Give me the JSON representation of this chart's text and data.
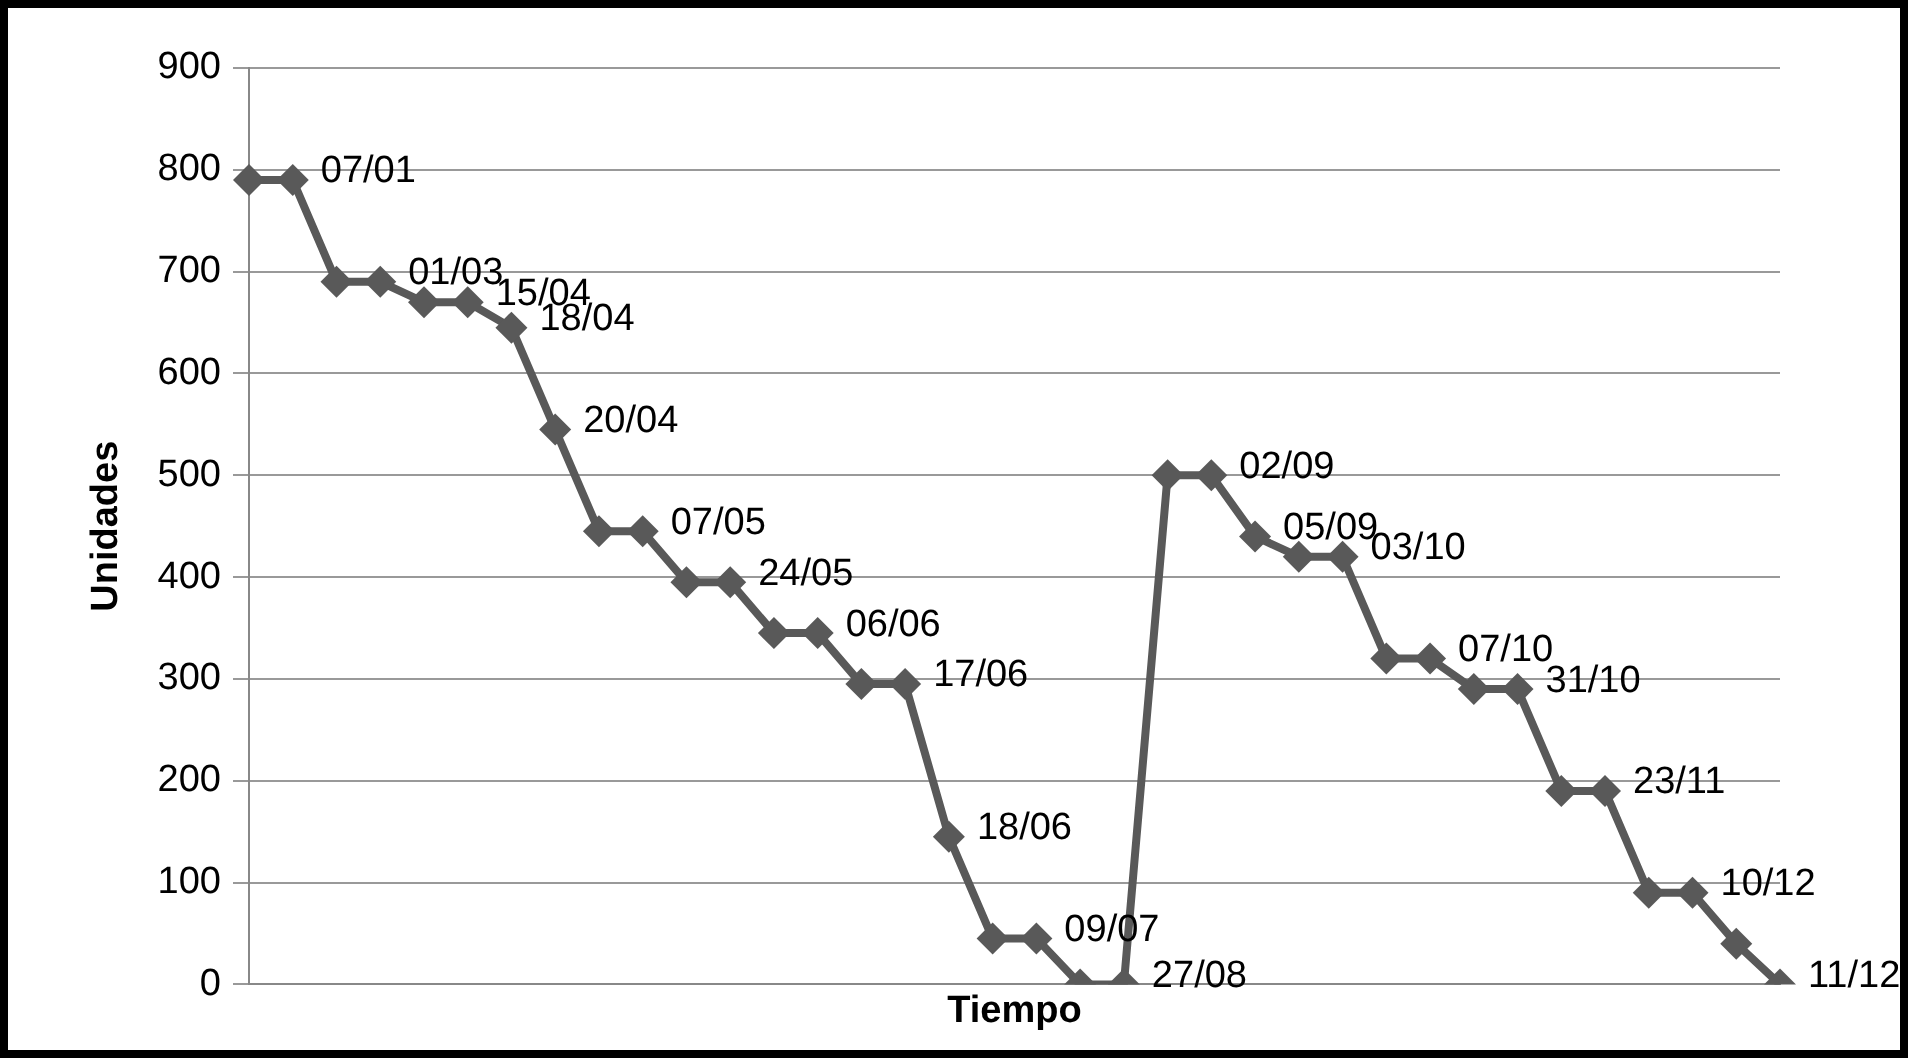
{
  "chart_data": {
    "type": "line",
    "xlabel": "Tiempo",
    "ylabel": "Unidades",
    "categories": [
      null,
      null,
      null,
      null,
      null,
      null,
      null,
      null,
      null,
      null,
      null,
      null,
      null,
      null,
      null,
      null,
      null,
      null,
      null,
      null,
      null,
      null,
      null,
      null,
      null,
      null,
      null,
      null,
      null,
      null,
      null,
      null,
      null,
      null,
      null,
      null
    ],
    "values": [
      790,
      790,
      690,
      690,
      670,
      670,
      645,
      545,
      445,
      445,
      395,
      395,
      345,
      345,
      295,
      295,
      145,
      45,
      45,
      0,
      0,
      500,
      500,
      440,
      420,
      420,
      320,
      320,
      290,
      290,
      190,
      190,
      90,
      90,
      40,
      0
    ],
    "annotations": [
      "07/01",
      "01/03",
      "15/04",
      "18/04",
      "20/04",
      "07/05",
      "24/05",
      "06/06",
      "17/06",
      "18/06",
      "09/07",
      "27/08",
      "02/09",
      "05/09",
      "03/10",
      "07/10",
      "31/10",
      "23/11",
      "10/12",
      "11/12"
    ],
    "color": "#595959",
    "marker": "diamond",
    "line_style": "solid",
    "ylim": [
      0,
      900
    ],
    "yticks": [
      0,
      100,
      200,
      300,
      400,
      500,
      600,
      700,
      800,
      900
    ],
    "grid": "y",
    "legend": false,
    "tick_labels": "y"
  }
}
